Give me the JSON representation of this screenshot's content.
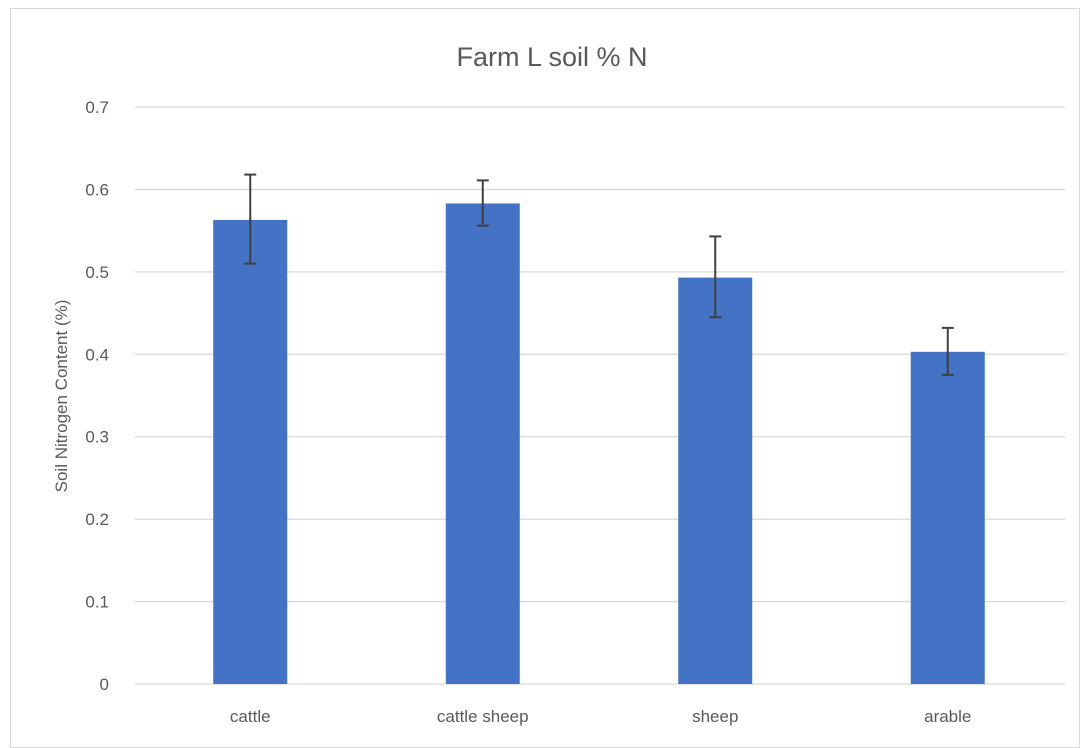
{
  "chart_data": {
    "type": "bar",
    "title": "Farm L soil % N",
    "xlabel": "",
    "ylabel": "Soil Nitrogen Content (%)",
    "categories": [
      "cattle",
      "cattle sheep",
      "sheep",
      "arable"
    ],
    "values": [
      0.563,
      0.583,
      0.493,
      0.403
    ],
    "error_plus": [
      0.055,
      0.028,
      0.05,
      0.029
    ],
    "error_minus": [
      0.053,
      0.027,
      0.048,
      0.028
    ],
    "ylim": [
      0,
      0.7
    ],
    "yticks": [
      "0",
      "0.1",
      "0.2",
      "0.3",
      "0.4",
      "0.5",
      "0.6",
      "0.7"
    ],
    "grid": true,
    "legend": "none",
    "bar_color": "#4472c4",
    "error_color": "#404040",
    "grid_color": "#d9d9d9"
  }
}
